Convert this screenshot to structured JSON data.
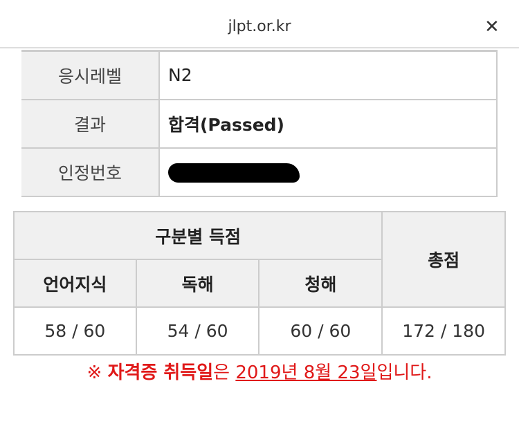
{
  "header": {
    "title": "jlpt.or.kr",
    "close_icon": "close-icon"
  },
  "info": [
    {
      "label": "응시레벨",
      "value": "N2"
    },
    {
      "label": "결과",
      "value": "합격(Passed)"
    },
    {
      "label": "인정번호",
      "value": ""
    }
  ],
  "scores": {
    "section_header": "구분별 득점",
    "total_header": "총점",
    "columns": [
      "언어지식",
      "독해",
      "청해"
    ],
    "values": [
      "58 / 60",
      "54 / 60",
      "60 / 60"
    ],
    "total": "172 / 180"
  },
  "note": {
    "mark": "※ ",
    "bold": "자격증 취득일",
    "mid": "은 ",
    "date": "2019년 8월 23일",
    "end": "입니다.",
    "color": "#e01818"
  }
}
